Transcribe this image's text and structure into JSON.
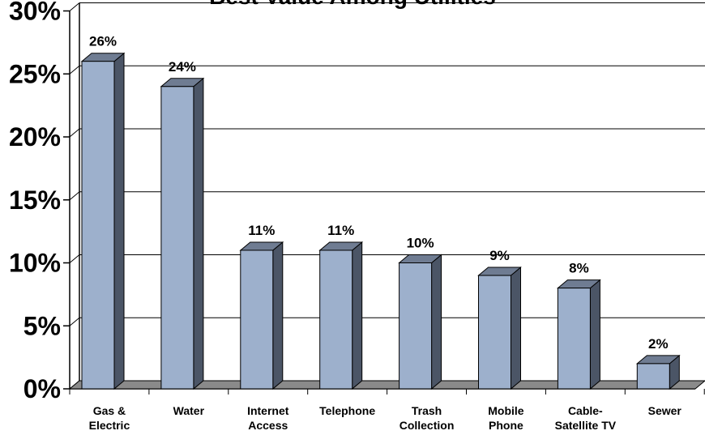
{
  "chart_data": {
    "type": "bar",
    "title": "Best Value Among Utilities",
    "categories": [
      [
        "Gas &",
        "Electric"
      ],
      [
        "Water"
      ],
      [
        "Internet",
        "Access"
      ],
      [
        "Telephone"
      ],
      [
        "Trash",
        "Collection"
      ],
      [
        "Mobile",
        "Phone"
      ],
      [
        "Cable-",
        "Satellite TV"
      ],
      [
        "Sewer"
      ]
    ],
    "values": [
      26,
      24,
      11,
      11,
      10,
      9,
      8,
      2
    ],
    "data_labels": [
      "26%",
      "24%",
      "11%",
      "11%",
      "10%",
      "9%",
      "8%",
      "2%"
    ],
    "ylim": [
      0,
      30
    ],
    "yticks": [
      0,
      5,
      10,
      15,
      20,
      25,
      30
    ],
    "ytick_labels": [
      "0%",
      "5%",
      "10%",
      "15%",
      "20%",
      "25%",
      "30%"
    ],
    "grid": true,
    "legend": false,
    "three_d": true
  },
  "colors": {
    "bar_front": "#9DB0CC",
    "bar_side": "#4B5566",
    "bar_top": "#6F7C92",
    "floor": "#8A8A8A",
    "grid": "#000000"
  }
}
